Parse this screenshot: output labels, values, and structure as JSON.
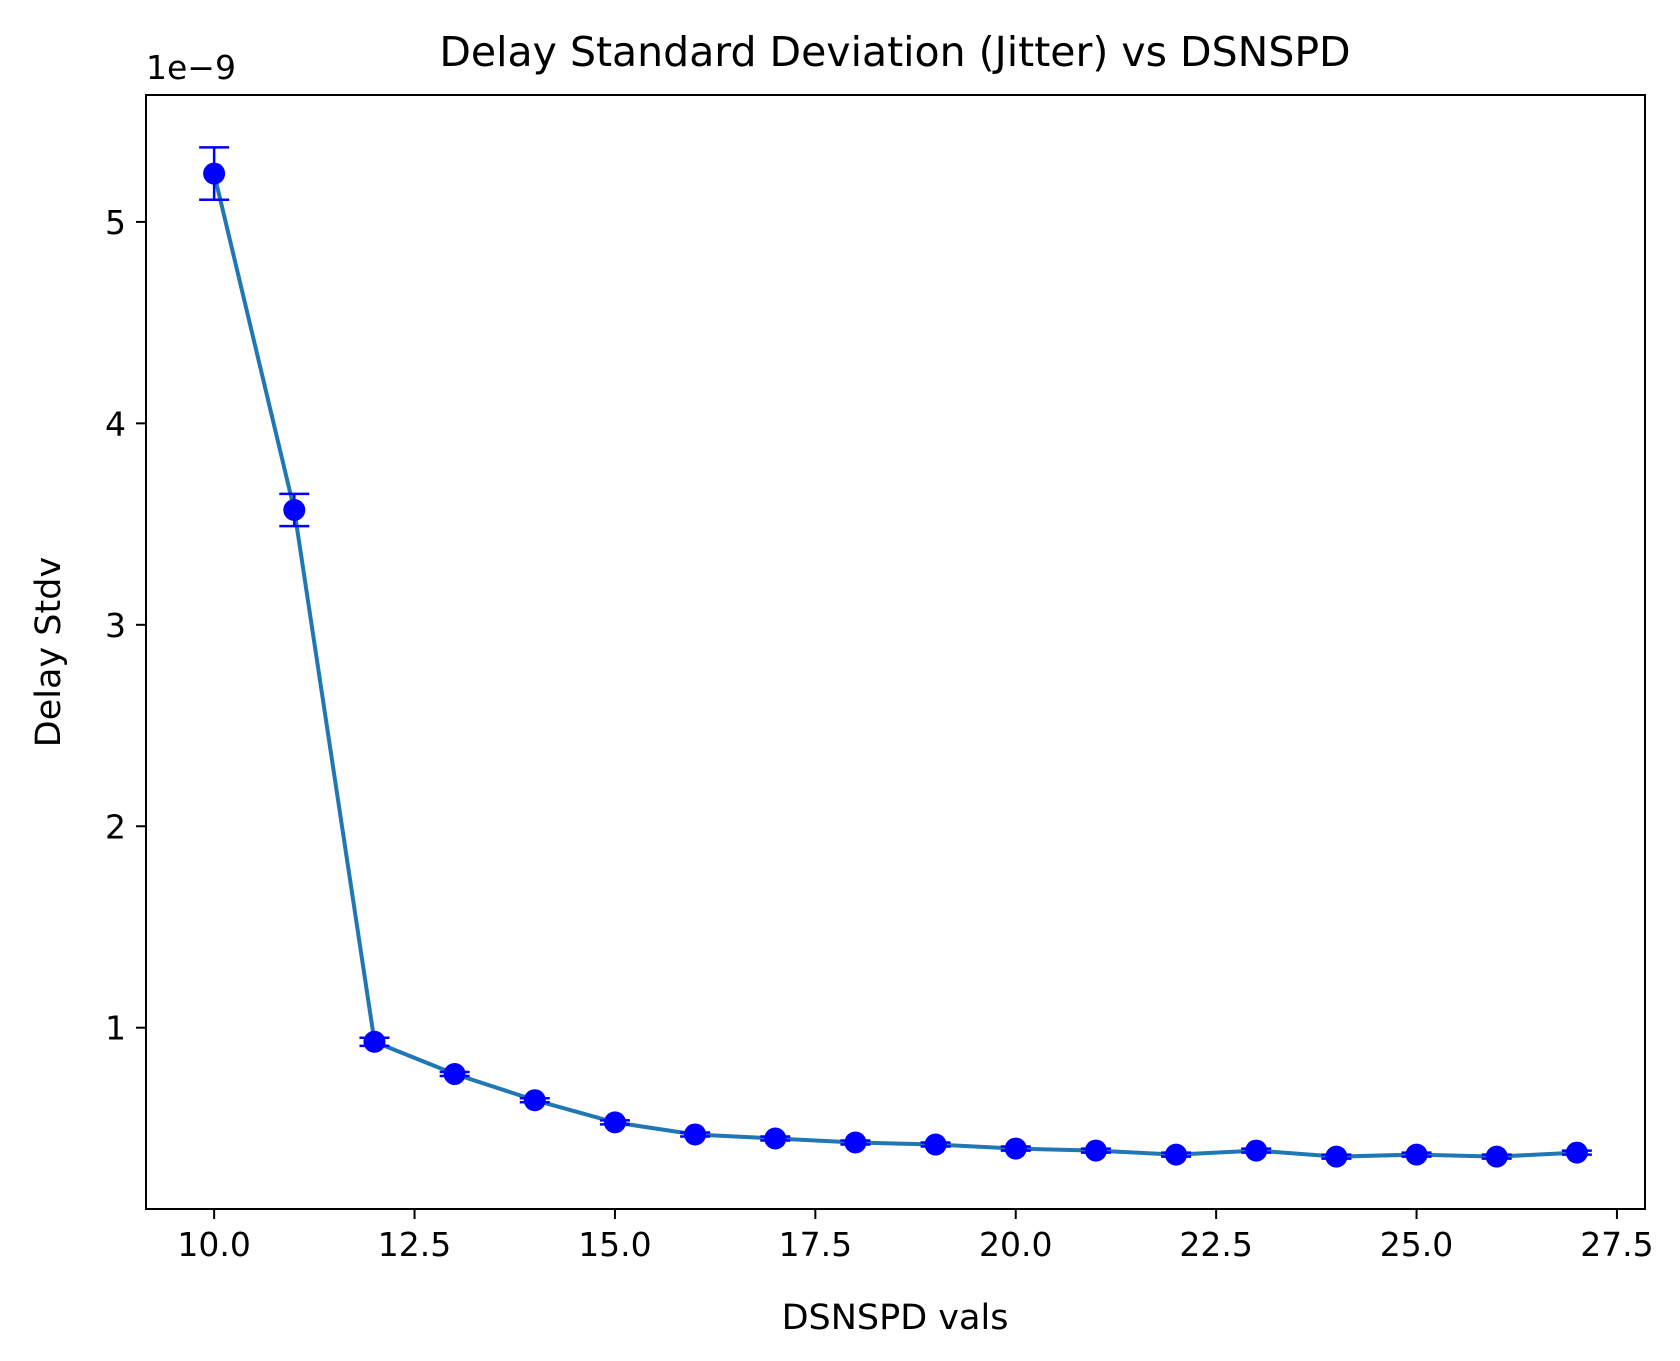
{
  "chart_data": {
    "type": "line",
    "title": "Delay Standard Deviation (Jitter) vs DSNSPD",
    "xlabel": "DSNSPD vals",
    "ylabel": "Delay Stdv",
    "y_offset_label": "1e−9",
    "xlim": [
      9.15,
      27.85
    ],
    "ylim": [
      1e-10,
      5.63e-09
    ],
    "x_ticks": [
      10.0,
      12.5,
      15.0,
      17.5,
      20.0,
      22.5,
      25.0,
      27.5
    ],
    "x_tick_labels": [
      "10.0",
      "12.5",
      "15.0",
      "17.5",
      "20.0",
      "22.5",
      "25.0",
      "27.5"
    ],
    "y_ticks": [
      1e-09,
      2e-09,
      3e-09,
      4e-09,
      5e-09
    ],
    "y_tick_labels": [
      "1",
      "2",
      "3",
      "4",
      "5"
    ],
    "grid": false,
    "series": [
      {
        "x": [
          10,
          11,
          12,
          13,
          14,
          15,
          16,
          17,
          18,
          19,
          20,
          21,
          22,
          23,
          24,
          25,
          26,
          27
        ],
        "y": [
          5.24e-09,
          3.57e-09,
          9.3e-10,
          7.7e-10,
          6.4e-10,
          5.3e-10,
          4.7e-10,
          4.5e-10,
          4.3e-10,
          4.2e-10,
          4e-10,
          3.9e-10,
          3.7e-10,
          3.9e-10,
          3.6e-10,
          3.7e-10,
          3.6e-10,
          3.8e-10
        ],
        "yerr": [
          1.3e-10,
          8e-11,
          2e-11,
          1e-11,
          1e-11,
          1e-11,
          1e-11,
          1e-11,
          1e-11,
          1e-11,
          1e-11,
          1e-11,
          1e-11,
          1e-11,
          1e-11,
          1e-11,
          1e-11,
          1e-11
        ],
        "line_color": "#1f77b4",
        "marker_color": "#0000ff",
        "errorbar_color": "#0000ff"
      }
    ]
  }
}
